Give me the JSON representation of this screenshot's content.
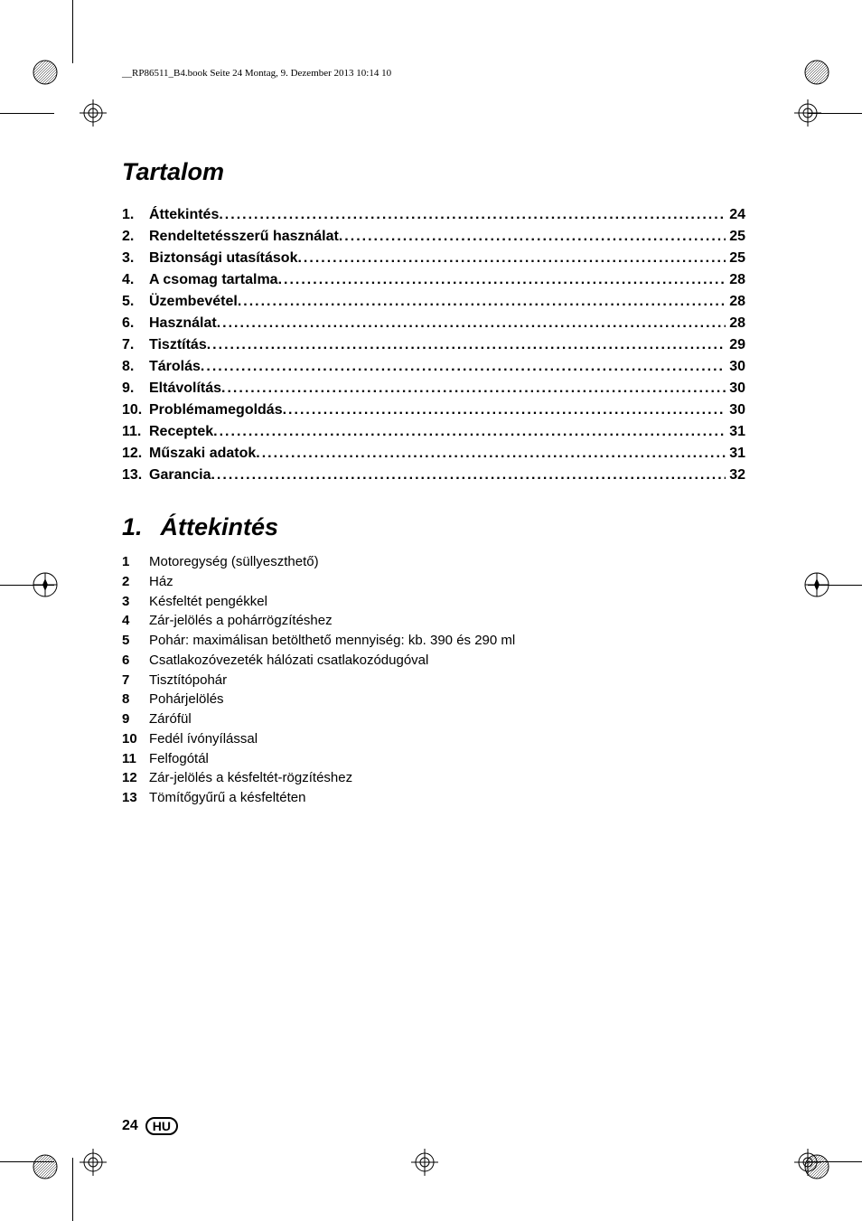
{
  "header": {
    "line": "__RP86511_B4.book  Seite 24  Montag, 9. Dezember 2013  10:14 10"
  },
  "toc": {
    "title": "Tartalom",
    "items": [
      {
        "n": "1.",
        "label": "Áttekintés",
        "page": "24"
      },
      {
        "n": "2.",
        "label": "Rendeltetésszerű használat",
        "page": "25"
      },
      {
        "n": "3.",
        "label": "Biztonsági utasítások",
        "page": "25"
      },
      {
        "n": "4.",
        "label": "A csomag tartalma",
        "page": "28"
      },
      {
        "n": "5.",
        "label": "Üzembevétel",
        "page": "28"
      },
      {
        "n": "6.",
        "label": "Használat",
        "page": "28"
      },
      {
        "n": "7.",
        "label": "Tisztítás",
        "page": "29"
      },
      {
        "n": "8.",
        "label": "Tárolás",
        "page": "30"
      },
      {
        "n": "9.",
        "label": "Eltávolítás",
        "page": "30"
      },
      {
        "n": "10.",
        "label": "Problémamegoldás",
        "page": "30"
      },
      {
        "n": "11.",
        "label": "Receptek",
        "page": "31"
      },
      {
        "n": "12.",
        "label": "Műszaki adatok",
        "page": "31"
      },
      {
        "n": "13.",
        "label": "Garancia",
        "page": "32"
      }
    ]
  },
  "section1": {
    "num": "1.",
    "title": "Áttekintés",
    "items": [
      {
        "n": "1",
        "text": "Motoregység (süllyeszthető)"
      },
      {
        "n": "2",
        "text": "Ház"
      },
      {
        "n": "3",
        "text": "Késfeltét pengékkel"
      },
      {
        "n": "4",
        "text": "Zár-jelölés a pohárrögzítéshez"
      },
      {
        "n": "5",
        "text": "Pohár: maximálisan betölthető mennyiség: kb. 390 és 290 ml"
      },
      {
        "n": "6",
        "text": "Csatlakozóvezeték hálózati csatlakozódugóval"
      },
      {
        "n": "7",
        "text": "Tisztítópohár"
      },
      {
        "n": "8",
        "text": "Pohárjelölés"
      },
      {
        "n": "9",
        "text": "Zárófül"
      },
      {
        "n": "10",
        "text": "Fedél ívónyílással"
      },
      {
        "n": "11",
        "text": "Felfogótál"
      },
      {
        "n": "12",
        "text": "Zár-jelölés a késfeltét-rögzítéshez"
      },
      {
        "n": "13",
        "text": "Tömítőgyűrű a késfeltéten"
      }
    ]
  },
  "footer": {
    "page": "24",
    "lang": "HU"
  },
  "style": {
    "background": "#ffffff",
    "text_color": "#000000",
    "title_fontsize": 27,
    "toc_fontsize": 16,
    "list_fontsize": 15
  }
}
